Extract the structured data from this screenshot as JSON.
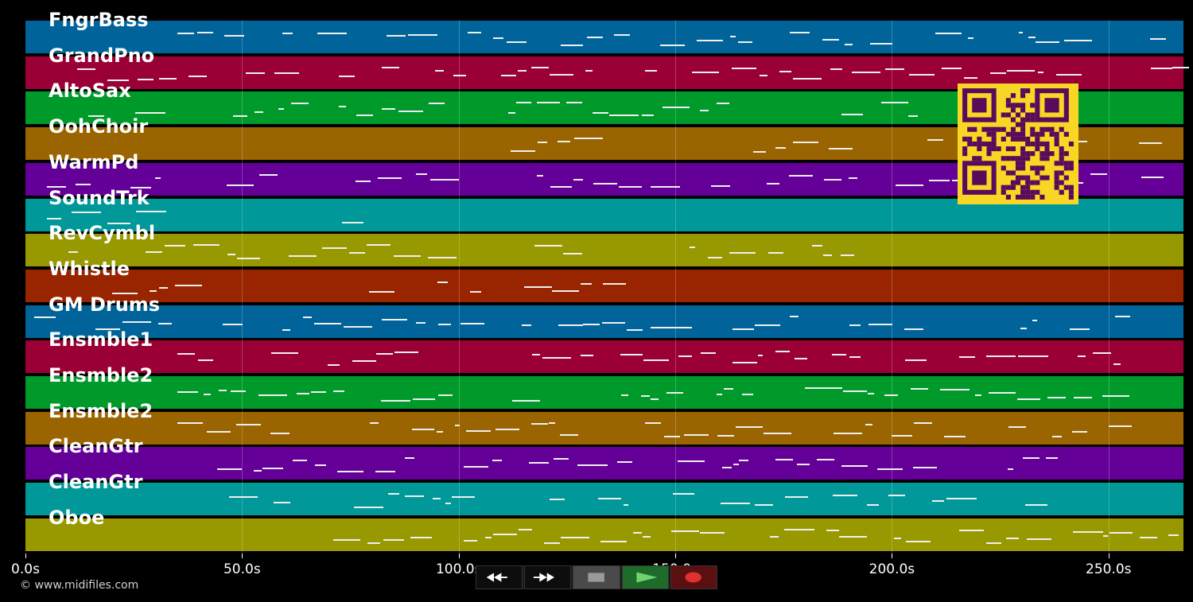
{
  "app": {
    "copyright": "© www.midifiles.com"
  },
  "tracks": [
    {
      "name": "FngrBass",
      "color": "#00649a"
    },
    {
      "name": "GrandPno",
      "color": "#9a0035"
    },
    {
      "name": "AltoSax",
      "color": "#009a2b"
    },
    {
      "name": "OohChoir",
      "color": "#9a6400"
    },
    {
      "name": "WarmPd",
      "color": "#640098"
    },
    {
      "name": "SoundTrk",
      "color": "#009898"
    },
    {
      "name": "RevCymbl",
      "color": "#989800"
    },
    {
      "name": "Whistle",
      "color": "#982400"
    },
    {
      "name": "GM Drums",
      "color": "#00649a"
    },
    {
      "name": "Ensmble1",
      "color": "#9a0035"
    },
    {
      "name": "Ensmble2",
      "color": "#009a2b"
    },
    {
      "name": "Ensmble2",
      "color": "#9a6400"
    },
    {
      "name": "CleanGtr",
      "color": "#640098"
    },
    {
      "name": "CleanGtr",
      "color": "#009898"
    },
    {
      "name": "Oboe",
      "color": "#989800"
    }
  ],
  "time_axis": {
    "min_s": 0,
    "max_s": 267.3,
    "ticks": [
      {
        "value": 0,
        "label": "0.0s"
      },
      {
        "value": 50,
        "label": "50.0s"
      },
      {
        "value": 100,
        "label": "100.0s"
      },
      {
        "value": 150,
        "label": "150.0s"
      },
      {
        "value": 200,
        "label": "200.0s"
      },
      {
        "value": 250,
        "label": "250.0s"
      }
    ]
  },
  "transport": {
    "buttons": [
      {
        "id": "rewind",
        "icon": "rewind-icon"
      },
      {
        "id": "fast-forward",
        "icon": "fast-forward-icon"
      },
      {
        "id": "stop",
        "icon": "stop-icon"
      },
      {
        "id": "play",
        "icon": "play-icon"
      },
      {
        "id": "record",
        "icon": "record-icon"
      }
    ]
  },
  "qr_code": {
    "icon": "qr-code-icon",
    "color": "#f7d625",
    "module_color": "#5a0a5a"
  }
}
